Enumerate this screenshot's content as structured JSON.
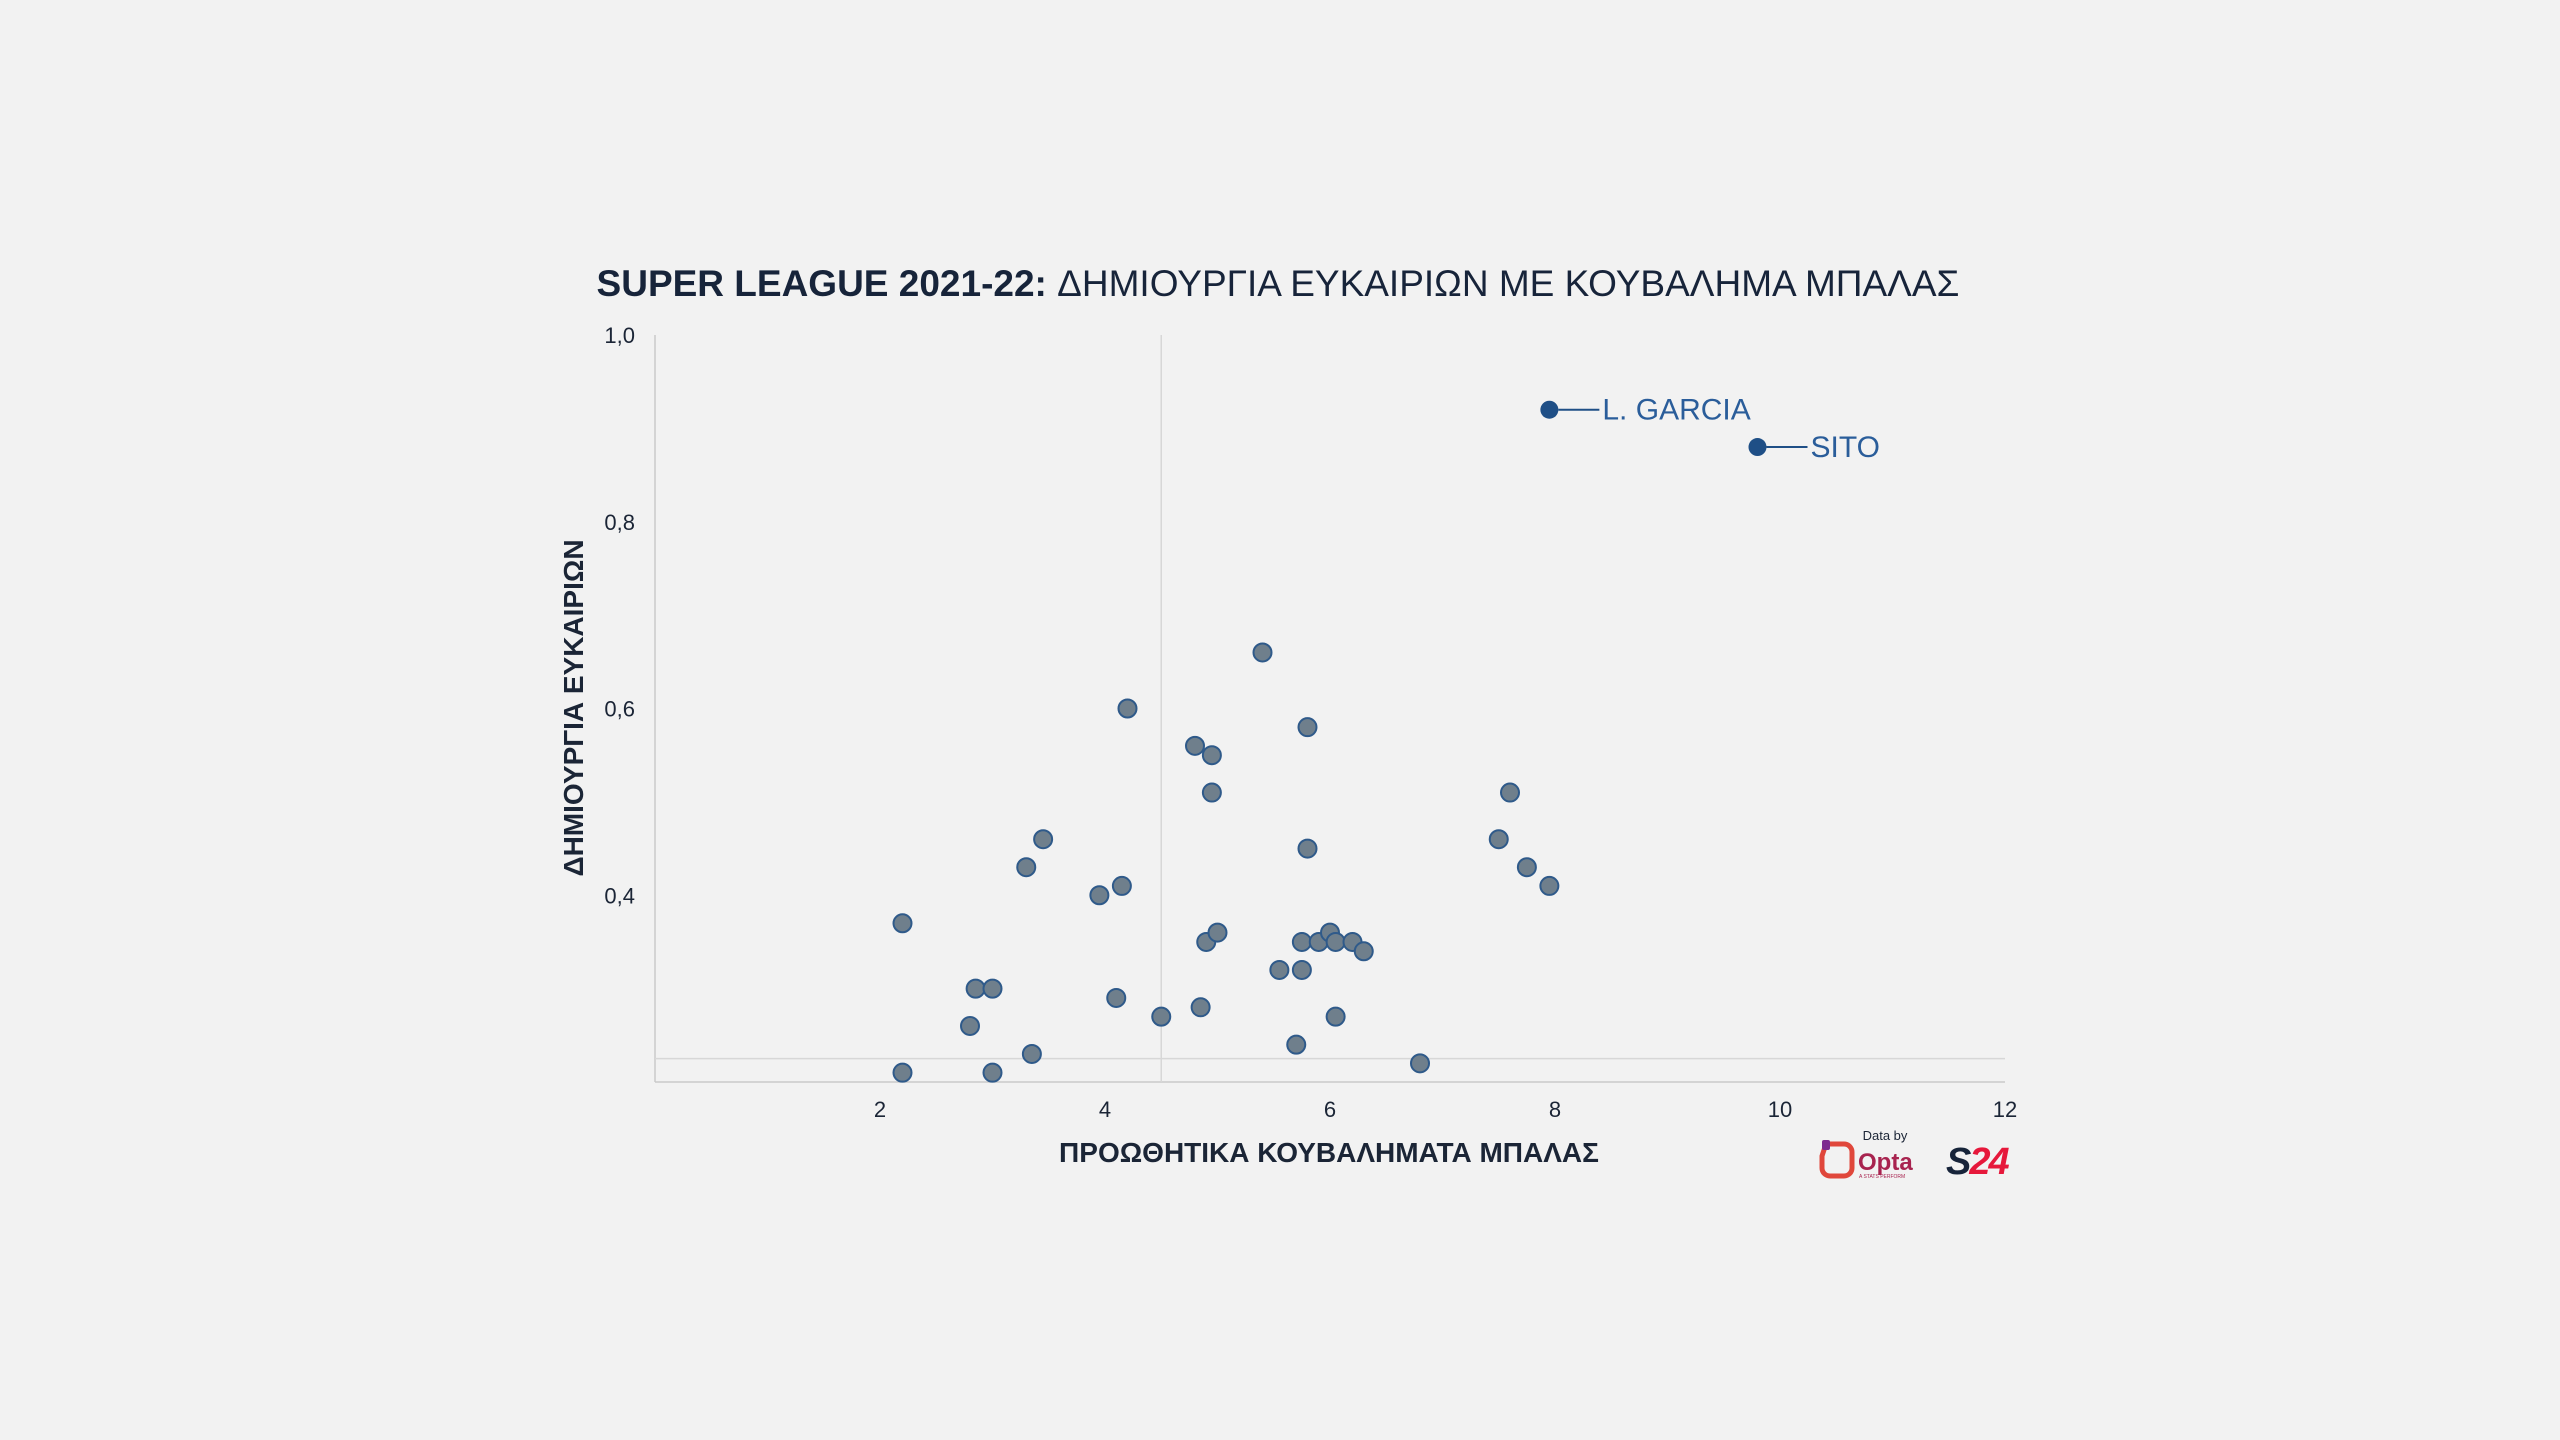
{
  "colors": {
    "background": "#f2f2f2",
    "title": "#17243a",
    "point_fill": "#6f7f8c",
    "point_stroke": "#2f5a8a",
    "highlight": "#1f4f86",
    "grid": "#d7d7d7",
    "brand_red": "#e6183b"
  },
  "header": {
    "title_bold": "SUPER LEAGUE 2021-22:",
    "title_rest": " ΔΗΜΙΟΥΡΓΙΑ ΕΥΚΑΙΡΙΩΝ ΜΕ ΚΟΥΒΑΛΗΜΑ ΜΠΑΛΑΣ"
  },
  "branding": {
    "data_by": "Data by",
    "opta": "Opta",
    "opta_sub": "A STATS PERFORM",
    "s24": "S24"
  },
  "chart_data": {
    "type": "scatter",
    "title": "SUPER LEAGUE 2021-22: ΔΗΜΙΟΥΡΓΙΑ ΕΥΚΑΙΡΙΩΝ ΜΕ ΚΟΥΒΑΛΗΜΑ ΜΠΑΛΑΣ",
    "xlabel": "ΠΡΟΩΘΗΤΙΚΑ ΚΟΥΒΑΛΗΜΑΤΑ ΜΠΑΛΑΣ",
    "ylabel": "ΔΗΜΙΟΥΡΓΙΑ ΕΥΚΑΙΡΙΩΝ",
    "xlim": [
      0,
      12
    ],
    "ylim": [
      0.2,
      1.0
    ],
    "x_ticks": [
      2,
      4,
      6,
      8,
      10,
      12
    ],
    "x_tick_labels": [
      "2",
      "4",
      "6",
      "8",
      "10",
      "12"
    ],
    "y_ticks": [
      0.4,
      0.6,
      0.8,
      1.0
    ],
    "y_tick_labels": [
      "0,4",
      "0,6",
      "0,8",
      "1,0"
    ],
    "reference_lines": {
      "x": 4.5,
      "y": 0.225
    },
    "grid": false,
    "points": [
      {
        "x": 2.2,
        "y": 0.37
      },
      {
        "x": 2.2,
        "y": 0.21
      },
      {
        "x": 2.8,
        "y": 0.26
      },
      {
        "x": 2.85,
        "y": 0.3
      },
      {
        "x": 3.0,
        "y": 0.3
      },
      {
        "x": 3.0,
        "y": 0.21
      },
      {
        "x": 3.3,
        "y": 0.43
      },
      {
        "x": 3.35,
        "y": 0.23
      },
      {
        "x": 3.45,
        "y": 0.46
      },
      {
        "x": 3.95,
        "y": 0.4
      },
      {
        "x": 4.1,
        "y": 0.29
      },
      {
        "x": 4.15,
        "y": 0.41
      },
      {
        "x": 4.2,
        "y": 0.6
      },
      {
        "x": 4.5,
        "y": 0.27
      },
      {
        "x": 4.8,
        "y": 0.56
      },
      {
        "x": 4.85,
        "y": 0.28
      },
      {
        "x": 4.9,
        "y": 0.35
      },
      {
        "x": 4.95,
        "y": 0.55
      },
      {
        "x": 4.95,
        "y": 0.51
      },
      {
        "x": 5.0,
        "y": 0.36
      },
      {
        "x": 5.4,
        "y": 0.66
      },
      {
        "x": 5.55,
        "y": 0.32
      },
      {
        "x": 5.7,
        "y": 0.24
      },
      {
        "x": 5.75,
        "y": 0.35
      },
      {
        "x": 5.75,
        "y": 0.32
      },
      {
        "x": 5.8,
        "y": 0.58
      },
      {
        "x": 5.8,
        "y": 0.45
      },
      {
        "x": 5.9,
        "y": 0.35
      },
      {
        "x": 6.0,
        "y": 0.36
      },
      {
        "x": 6.05,
        "y": 0.35
      },
      {
        "x": 6.05,
        "y": 0.27
      },
      {
        "x": 6.2,
        "y": 0.35
      },
      {
        "x": 6.3,
        "y": 0.34
      },
      {
        "x": 6.8,
        "y": 0.22
      },
      {
        "x": 7.5,
        "y": 0.46
      },
      {
        "x": 7.6,
        "y": 0.51
      },
      {
        "x": 7.75,
        "y": 0.43
      },
      {
        "x": 7.95,
        "y": 0.41
      }
    ],
    "highlighted": [
      {
        "x": 7.95,
        "y": 0.92,
        "label": "L. GARCIA"
      },
      {
        "x": 9.8,
        "y": 0.88,
        "label": "SITO"
      }
    ]
  }
}
